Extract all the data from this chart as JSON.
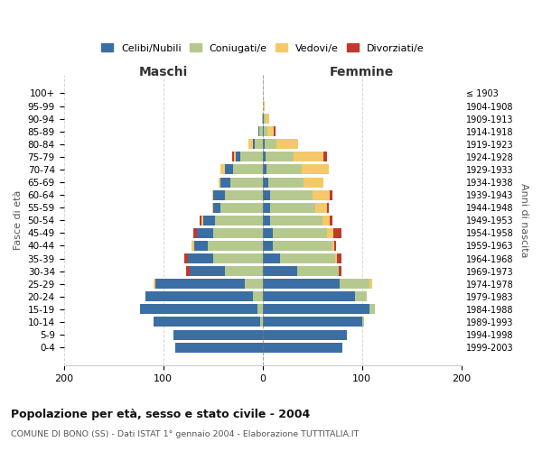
{
  "age_groups": [
    "0-4",
    "5-9",
    "10-14",
    "15-19",
    "20-24",
    "25-29",
    "30-34",
    "35-39",
    "40-44",
    "45-49",
    "50-54",
    "55-59",
    "60-64",
    "65-69",
    "70-74",
    "75-79",
    "80-84",
    "85-89",
    "90-94",
    "95-99",
    "100+"
  ],
  "birth_years": [
    "1999-2003",
    "1994-1998",
    "1989-1993",
    "1984-1988",
    "1979-1983",
    "1974-1978",
    "1969-1973",
    "1964-1968",
    "1959-1963",
    "1954-1958",
    "1949-1953",
    "1944-1948",
    "1939-1943",
    "1934-1938",
    "1929-1933",
    "1924-1928",
    "1919-1923",
    "1914-1918",
    "1909-1913",
    "1904-1908",
    "≤ 1903"
  ],
  "maschi_celibi": [
    88,
    90,
    108,
    118,
    108,
    90,
    35,
    25,
    14,
    16,
    12,
    8,
    12,
    10,
    8,
    5,
    2,
    1,
    0,
    0,
    0
  ],
  "maschi_coniugati": [
    0,
    0,
    2,
    5,
    10,
    18,
    38,
    50,
    55,
    50,
    48,
    42,
    38,
    32,
    30,
    22,
    8,
    3,
    1,
    0,
    0
  ],
  "maschi_vedovi": [
    0,
    0,
    0,
    0,
    0,
    2,
    0,
    0,
    2,
    0,
    1,
    1,
    1,
    2,
    4,
    2,
    4,
    0,
    0,
    0,
    0
  ],
  "maschi_divorziati": [
    0,
    0,
    0,
    0,
    0,
    0,
    4,
    4,
    0,
    4,
    2,
    0,
    0,
    0,
    0,
    2,
    0,
    0,
    0,
    0,
    0
  ],
  "femmine_celibi": [
    80,
    85,
    100,
    108,
    93,
    78,
    35,
    18,
    10,
    10,
    8,
    8,
    8,
    6,
    4,
    3,
    2,
    1,
    1,
    0,
    0
  ],
  "femmine_coniugati": [
    0,
    0,
    2,
    5,
    12,
    30,
    42,
    55,
    60,
    55,
    52,
    45,
    42,
    35,
    35,
    28,
    12,
    4,
    2,
    0,
    0
  ],
  "femmine_vedovi": [
    0,
    0,
    0,
    0,
    0,
    2,
    0,
    2,
    2,
    6,
    8,
    12,
    18,
    20,
    28,
    30,
    22,
    6,
    4,
    2,
    0
  ],
  "femmine_divorziati": [
    0,
    0,
    0,
    0,
    0,
    0,
    2,
    4,
    2,
    8,
    2,
    2,
    2,
    0,
    0,
    4,
    0,
    2,
    0,
    0,
    0
  ],
  "colors": {
    "celibi": "#3a6ea5",
    "coniugati": "#b5c98e",
    "vedovi": "#f5c96a",
    "divorziati": "#c0392b"
  },
  "title": "Popolazione per età, sesso e stato civile - 2004",
  "subtitle": "COMUNE DI BONO (SS) - Dati ISTAT 1° gennaio 2004 - Elaborazione TUTTITALIA.IT",
  "xlabel_left": "Maschi",
  "xlabel_right": "Femmine",
  "ylabel_left": "Fasce di età",
  "ylabel_right": "Anni di nascita",
  "xlim": 200,
  "background_color": "#ffffff",
  "grid_color": "#cccccc"
}
